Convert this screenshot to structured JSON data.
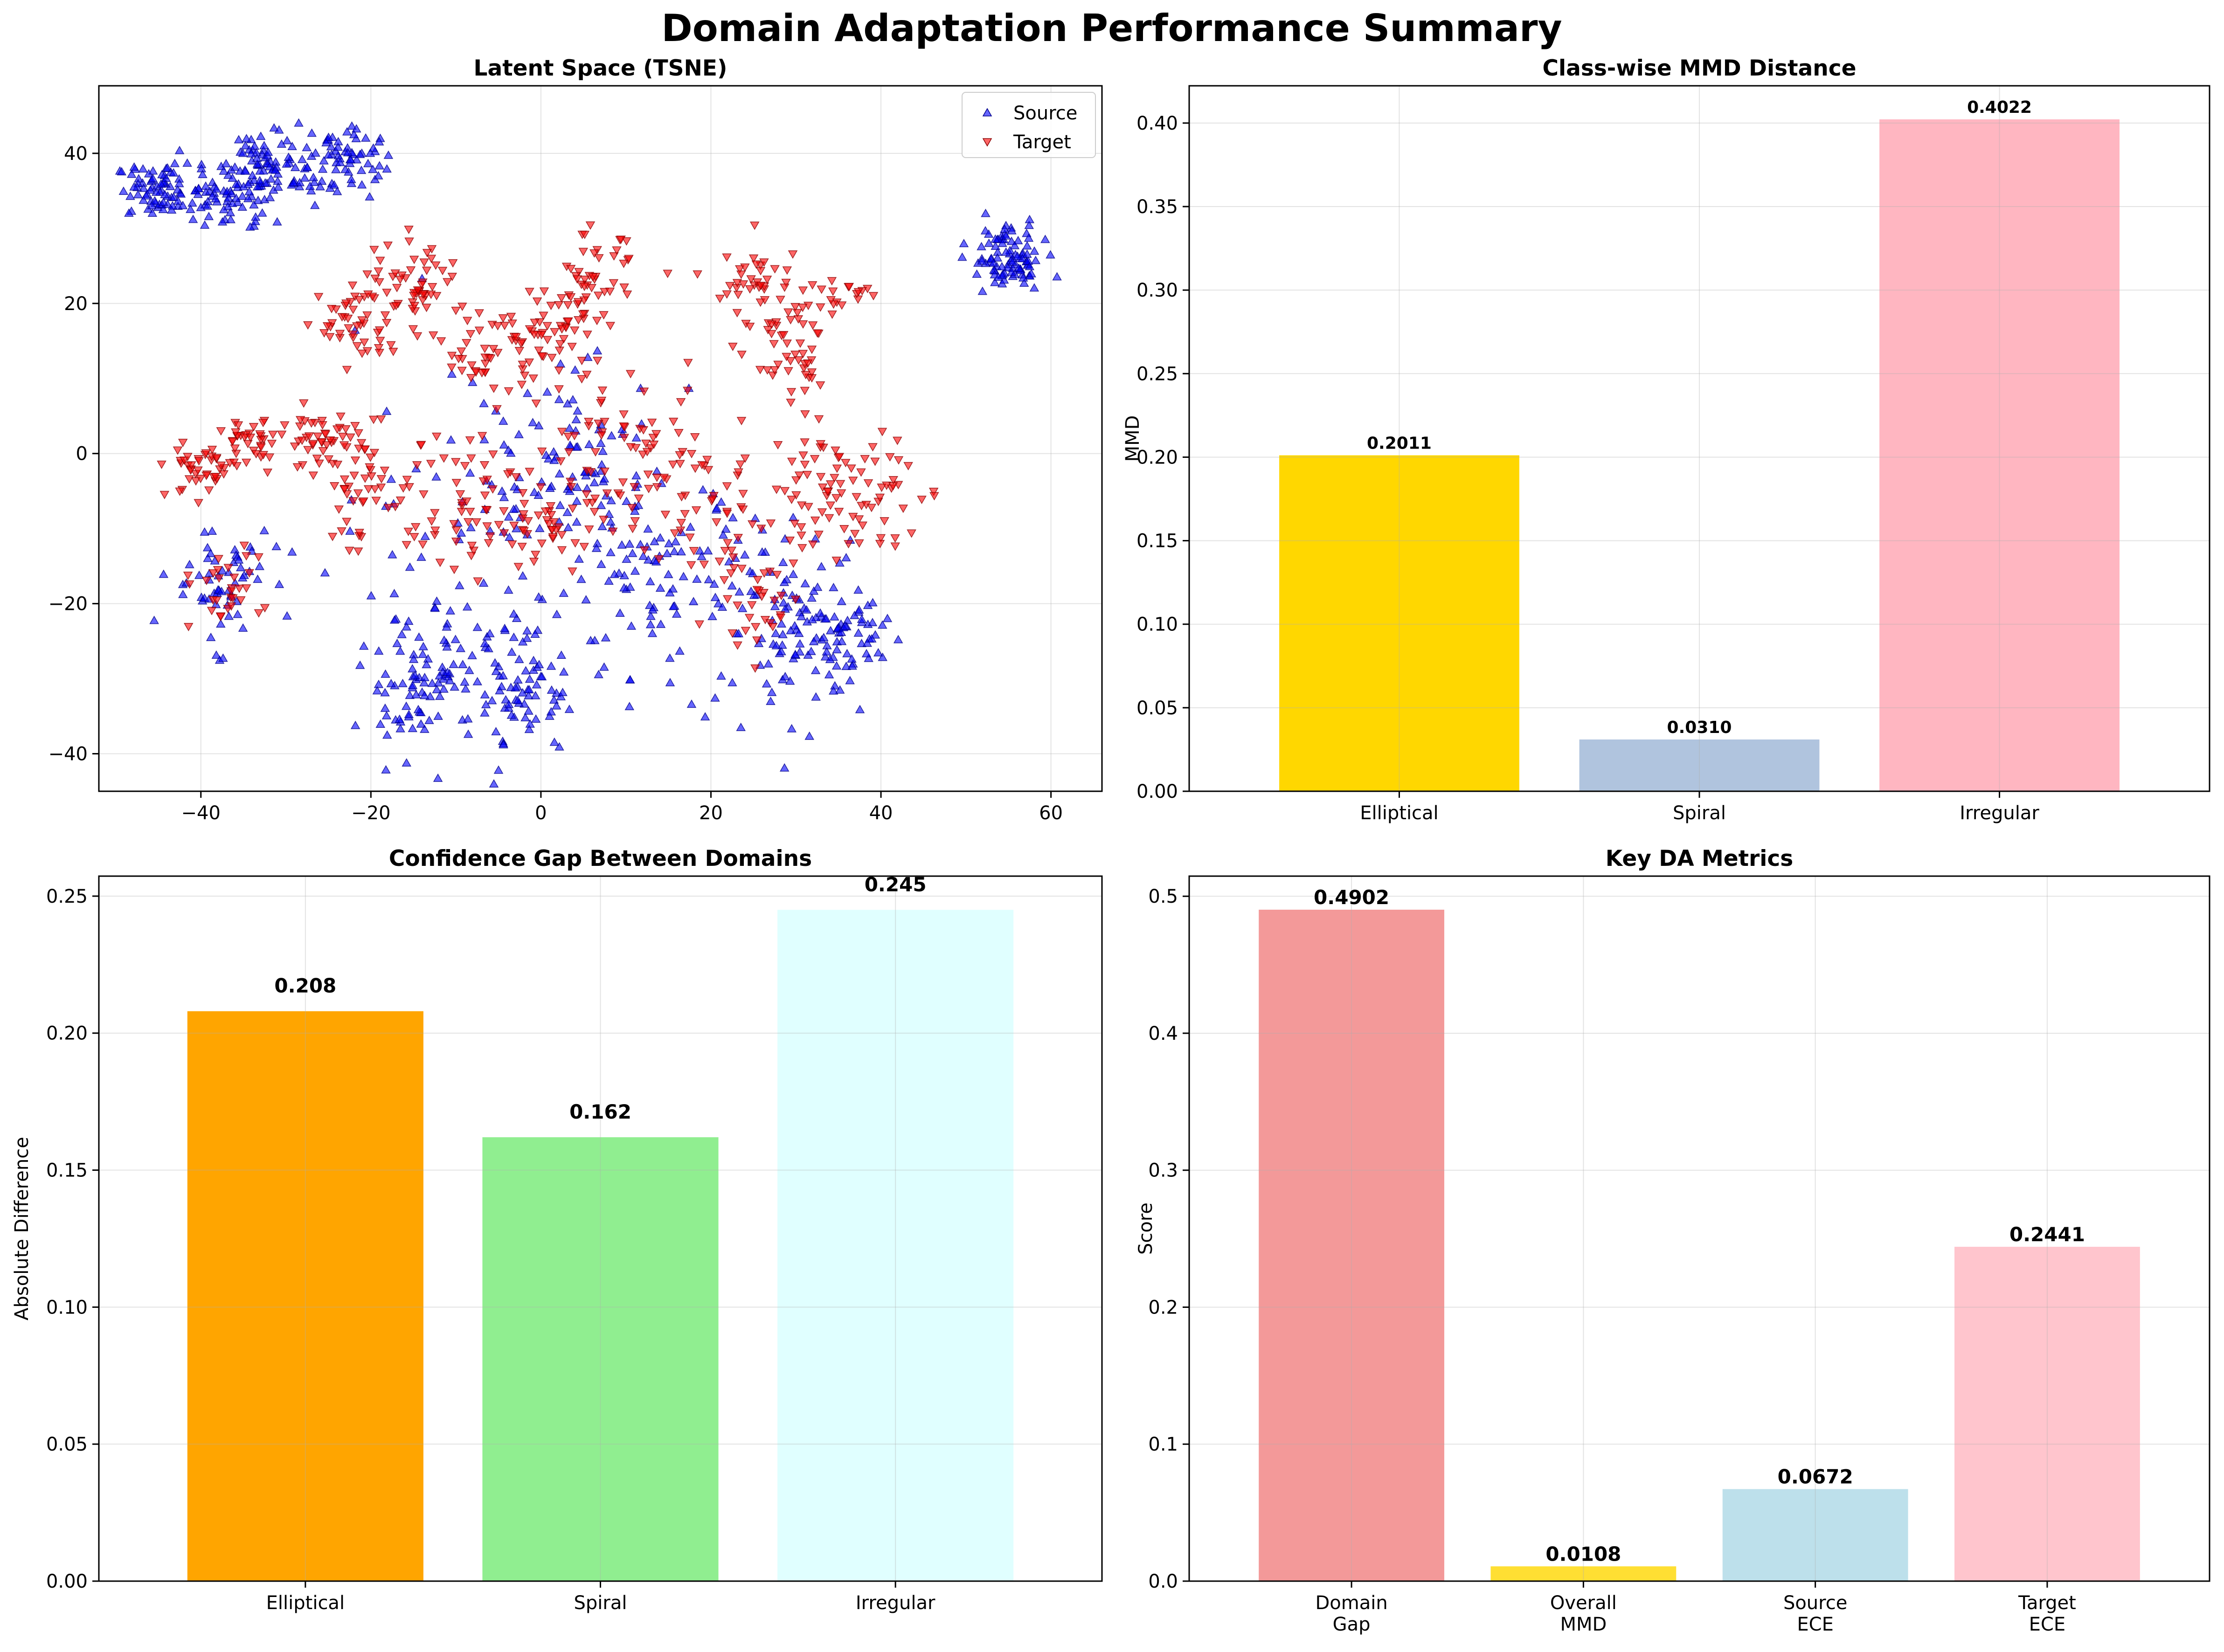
{
  "figure": {
    "title": "Domain Adaptation Performance Summary"
  },
  "chart_data": [
    {
      "type": "scatter",
      "title": "Latent Space (TSNE)",
      "xlabel": "",
      "ylabel": "",
      "xlim": [
        -52,
        66
      ],
      "ylim": [
        -45,
        49
      ],
      "xticks": [
        -40,
        -20,
        0,
        20,
        40,
        60
      ],
      "yticks": [
        -40,
        -20,
        0,
        20,
        40
      ],
      "grid": true,
      "legend": "top-right",
      "series": [
        {
          "name": "Source",
          "marker": "triangle-up",
          "color": "#0000ff",
          "clusters": [
            {
              "cx": -45,
              "cy": 35,
              "sx": 2.5,
              "sy": 1.8,
              "n": 70
            },
            {
              "cx": -37,
              "cy": 34,
              "sx": 3,
              "sy": 2,
              "n": 70
            },
            {
              "cx": -32,
              "cy": 39,
              "sx": 2.5,
              "sy": 2.5,
              "n": 70
            },
            {
              "cx": -24,
              "cy": 39,
              "sx": 2.5,
              "sy": 2.5,
              "n": 75
            },
            {
              "cx": 55,
              "cy": 26,
              "sx": 2.2,
              "sy": 2.2,
              "n": 95
            },
            {
              "cx": -38,
              "cy": -17,
              "sx": 3,
              "sy": 4,
              "n": 60
            },
            {
              "cx": -14,
              "cy": -30,
              "sx": 3.5,
              "sy": 5,
              "n": 100
            },
            {
              "cx": -2,
              "cy": -32,
              "sx": 3,
              "sy": 4,
              "n": 75
            },
            {
              "cx": 13,
              "cy": -17,
              "sx": 6,
              "sy": 7,
              "n": 110
            },
            {
              "cx": 30,
              "cy": -22,
              "sx": 4,
              "sy": 6,
              "n": 95
            },
            {
              "cx": 37,
              "cy": -25,
              "sx": 3,
              "sy": 3,
              "n": 50
            },
            {
              "cx": -5,
              "cy": -5,
              "sx": 8,
              "sy": 10,
              "n": 80
            },
            {
              "cx": 5,
              "cy": 0,
              "sx": 5,
              "sy": 5,
              "n": 50
            }
          ]
        },
        {
          "name": "Target",
          "marker": "triangle-down",
          "color": "#ff0000",
          "clusters": [
            {
              "cx": -22,
              "cy": 17,
              "sx": 2,
              "sy": 2.5,
              "n": 40
            },
            {
              "cx": -15,
              "cy": 22,
              "sx": 3,
              "sy": 3,
              "n": 60
            },
            {
              "cx": -6,
              "cy": 14,
              "sx": 3,
              "sy": 3,
              "n": 50
            },
            {
              "cx": 2,
              "cy": 16,
              "sx": 3,
              "sy": 3,
              "n": 45
            },
            {
              "cx": 6,
              "cy": 23,
              "sx": 2.5,
              "sy": 3,
              "n": 45
            },
            {
              "cx": 26,
              "cy": 22,
              "sx": 3,
              "sy": 3,
              "n": 50
            },
            {
              "cx": 30,
              "cy": 12,
              "sx": 2.5,
              "sy": 3,
              "n": 40
            },
            {
              "cx": 36,
              "cy": 21,
              "sx": 2,
              "sy": 1.2,
              "n": 15
            },
            {
              "cx": -40,
              "cy": -2,
              "sx": 2,
              "sy": 2,
              "n": 40
            },
            {
              "cx": -34,
              "cy": 1,
              "sx": 2,
              "sy": 2,
              "n": 40
            },
            {
              "cx": -26,
              "cy": 2,
              "sx": 2.5,
              "sy": 2,
              "n": 40
            },
            {
              "cx": -20,
              "cy": -5,
              "sx": 4,
              "sy": 4,
              "n": 50
            },
            {
              "cx": -8,
              "cy": -6,
              "sx": 4,
              "sy": 5,
              "n": 60
            },
            {
              "cx": 2,
              "cy": -8,
              "sx": 3,
              "sy": 4,
              "n": 40
            },
            {
              "cx": 10,
              "cy": 0,
              "sx": 5,
              "sy": 5,
              "n": 60
            },
            {
              "cx": 20,
              "cy": -8,
              "sx": 4,
              "sy": 5,
              "n": 50
            },
            {
              "cx": 33,
              "cy": -5,
              "sx": 4,
              "sy": 4,
              "n": 50
            },
            {
              "cx": 40,
              "cy": -5,
              "sx": 3,
              "sy": 5,
              "n": 40
            },
            {
              "cx": -38,
              "cy": -18,
              "sx": 2.5,
              "sy": 2.5,
              "n": 30
            },
            {
              "cx": 25,
              "cy": -20,
              "sx": 3,
              "sy": 3,
              "n": 30
            }
          ]
        }
      ]
    },
    {
      "type": "bar",
      "title": "Class-wise MMD Distance",
      "xlabel": "",
      "ylabel": "MMD",
      "categories": [
        "Elliptical",
        "Spiral",
        "Irregular"
      ],
      "values": [
        0.2011,
        0.031,
        0.4022
      ],
      "value_labels": [
        "0.2011",
        "0.0310",
        "0.4022"
      ],
      "colors": [
        "#ffd700",
        "#b0c4de",
        "#ffb6c1"
      ],
      "ylim": [
        0,
        0.4223
      ],
      "yticks": [
        0.0,
        0.05,
        0.1,
        0.15,
        0.2,
        0.25,
        0.3,
        0.35,
        0.4
      ],
      "ytick_labels": [
        "0.00",
        "0.05",
        "0.10",
        "0.15",
        "0.20",
        "0.25",
        "0.30",
        "0.35",
        "0.40"
      ],
      "grid": true
    },
    {
      "type": "bar",
      "title": "Confidence Gap Between Domains",
      "xlabel": "",
      "ylabel": "Absolute Difference",
      "categories": [
        "Elliptical",
        "Spiral",
        "Irregular"
      ],
      "values": [
        0.208,
        0.162,
        0.245
      ],
      "value_labels": [
        "0.208",
        "0.162",
        "0.245"
      ],
      "colors": [
        "#ffa500",
        "#90ee90",
        "#e0ffff"
      ],
      "ylim": [
        0,
        0.2573
      ],
      "yticks": [
        0.0,
        0.05,
        0.1,
        0.15,
        0.2,
        0.25
      ],
      "ytick_labels": [
        "0.00",
        "0.05",
        "0.10",
        "0.15",
        "0.20",
        "0.25"
      ],
      "grid": true
    },
    {
      "type": "bar",
      "title": "Key DA Metrics",
      "xlabel": "",
      "ylabel": "Score",
      "categories": [
        "Domain\nGap",
        "Overall\nMMD",
        "Source\nECE",
        "Target\nECE"
      ],
      "values": [
        0.4902,
        0.0108,
        0.0672,
        0.2441
      ],
      "value_labels": [
        "0.4902",
        "0.0108",
        "0.0672",
        "0.2441"
      ],
      "colors": [
        "#f08080",
        "#ffd700",
        "#add8e6",
        "#ffb6c1"
      ],
      "ylim": [
        0,
        0.5147
      ],
      "yticks": [
        0.0,
        0.1,
        0.2,
        0.3,
        0.4,
        0.5
      ],
      "ytick_labels": [
        "0.0",
        "0.1",
        "0.2",
        "0.3",
        "0.4",
        "0.5"
      ],
      "grid": true
    }
  ]
}
